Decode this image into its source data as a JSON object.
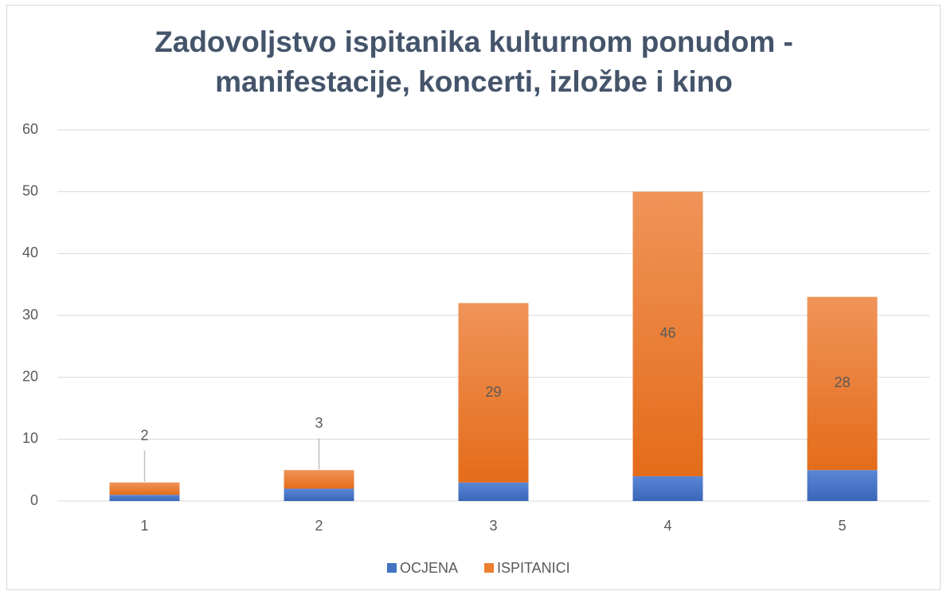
{
  "chart_data": {
    "type": "stacked_bar",
    "title": "Zadovoljstvo ispitanika kulturnom ponudom - manifestacije, koncerti, izložbe i kino",
    "categories": [
      "1",
      "2",
      "3",
      "4",
      "5"
    ],
    "series": [
      {
        "name": "OCJENA",
        "color": "#4472c4",
        "values": [
          1,
          2,
          3,
          4,
          5
        ]
      },
      {
        "name": "ISPITANICI",
        "color": "#ed7d31",
        "values": [
          2,
          3,
          29,
          46,
          28
        ],
        "data_labels": true
      }
    ],
    "ylim": [
      0,
      60
    ],
    "yticks": [
      0,
      10,
      20,
      30,
      40,
      50,
      60
    ],
    "grid": true,
    "legend": "bottom"
  }
}
